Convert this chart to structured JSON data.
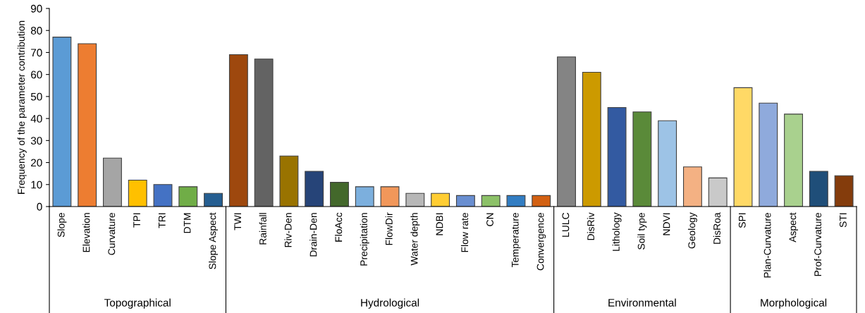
{
  "chart_data": {
    "type": "bar",
    "ylabel": "Frequency of the parameter contribution",
    "categories": [
      "Slope",
      "Elevation",
      "Curvature",
      "TPI",
      "TRI",
      "DTM",
      "Slope Aspect",
      "TWI",
      "Rainfall",
      "Riv-Den",
      "Drain-Den",
      "FloAcc",
      "Precipitation",
      "FlowDir",
      "Water depth",
      "NDBI",
      "Flow rate",
      "CN",
      "Temperature",
      "Convergence",
      "LULC",
      "DisRiv",
      "Lithology",
      "Soil type",
      "NDVI",
      "Geology",
      "DisRoa",
      "SPI",
      "Plan-Curvature",
      "Aspect",
      "Prof-Curvature",
      "STI"
    ],
    "values": [
      77,
      74,
      22,
      12,
      10,
      9,
      6,
      69,
      67,
      23,
      16,
      11,
      9,
      9,
      6,
      6,
      5,
      5,
      5,
      5,
      68,
      61,
      45,
      43,
      39,
      18,
      13,
      54,
      47,
      42,
      16,
      14
    ],
    "colors": [
      "#5b9bd5",
      "#ed7d31",
      "#a5a5a5",
      "#ffc000",
      "#4472c4",
      "#70ad47",
      "#255e91",
      "#9e480e",
      "#636363",
      "#997300",
      "#264478",
      "#43682b",
      "#7cafdd",
      "#f1975a",
      "#b7b7b7",
      "#ffcd33",
      "#698ed0",
      "#8cc168",
      "#327dc2",
      "#d26012",
      "#848484",
      "#cc9a00",
      "#335aa1",
      "#5a8a39",
      "#9dc3e6",
      "#f4b183",
      "#c9c9c9",
      "#ffd966",
      "#8faadc",
      "#a9d18e",
      "#1f4e79",
      "#843c0c"
    ],
    "ylim": [
      0,
      90
    ],
    "yticks": [
      0,
      10,
      20,
      30,
      40,
      50,
      60,
      70,
      80,
      90
    ],
    "grid": false,
    "legend": false,
    "annotations": [
      "Topographical",
      "Hydrological",
      "Environmental",
      "Morphological"
    ]
  }
}
